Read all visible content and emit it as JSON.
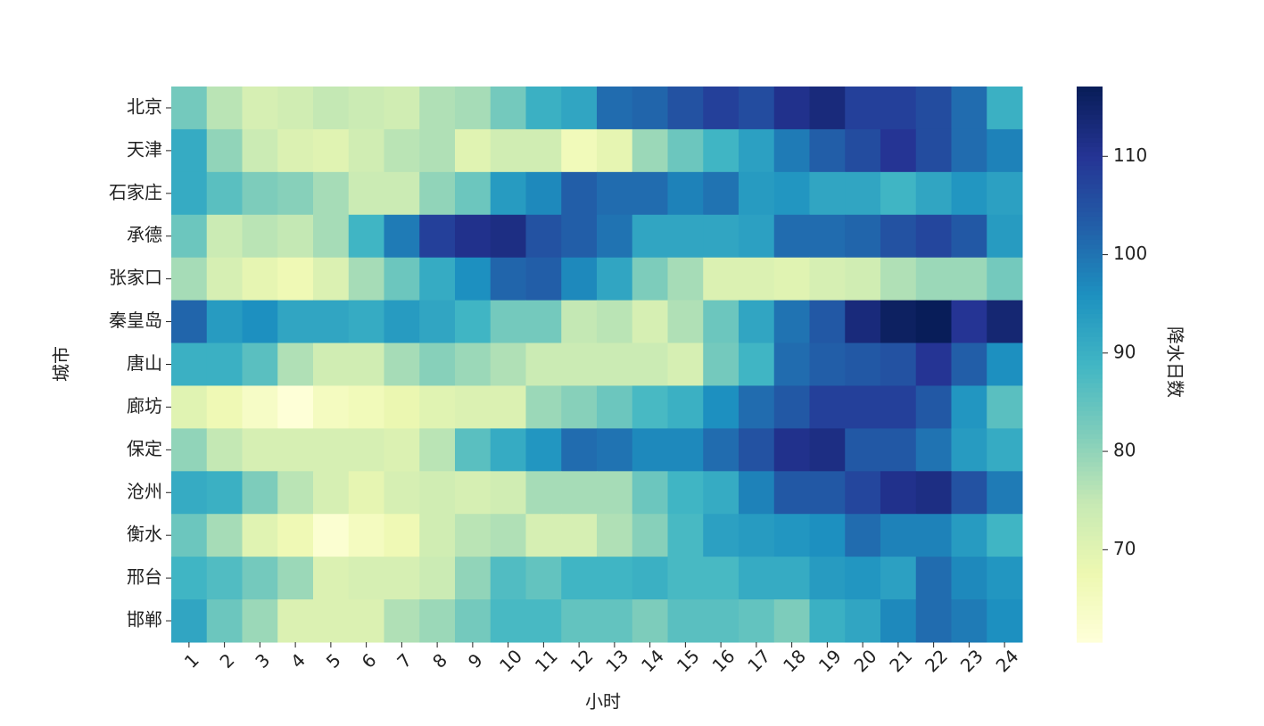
{
  "chart_data": {
    "type": "heatmap",
    "x_label": "小时",
    "y_label": "城市",
    "colorbar_label": "降水日数",
    "x": [
      1,
      2,
      3,
      4,
      5,
      6,
      7,
      8,
      9,
      10,
      11,
      12,
      13,
      14,
      15,
      16,
      17,
      18,
      19,
      20,
      21,
      22,
      23,
      24
    ],
    "y": [
      "北京",
      "天津",
      "石家庄",
      "承德",
      "张家口",
      "秦皇岛",
      "唐山",
      "廊坊",
      "保定",
      "沧州",
      "衡水",
      "邢台",
      "邯郸"
    ],
    "values": [
      [
        83,
        76,
        72,
        73,
        75,
        74,
        73,
        77,
        78,
        83,
        90,
        92,
        101,
        102,
        105,
        108,
        106,
        111,
        113,
        108,
        108,
        106,
        101,
        90
      ],
      [
        91,
        80,
        74,
        71,
        70,
        73,
        76,
        77,
        70,
        73,
        73,
        66,
        69,
        79,
        84,
        89,
        93,
        99,
        103,
        106,
        110,
        106,
        101,
        98
      ],
      [
        91,
        86,
        82,
        81,
        78,
        74,
        74,
        80,
        84,
        94,
        97,
        103,
        101,
        101,
        98,
        100,
        94,
        95,
        92,
        92,
        89,
        92,
        95,
        93
      ],
      [
        84,
        74,
        76,
        75,
        78,
        89,
        99,
        108,
        111,
        112,
        105,
        103,
        100,
        92,
        92,
        92,
        93,
        101,
        101,
        102,
        105,
        107,
        104,
        94
      ],
      [
        78,
        72,
        69,
        67,
        71,
        78,
        84,
        91,
        96,
        102,
        103,
        97,
        92,
        82,
        78,
        71,
        71,
        70,
        72,
        73,
        77,
        79,
        79,
        83
      ],
      [
        102,
        94,
        96,
        92,
        92,
        91,
        94,
        92,
        89,
        83,
        83,
        75,
        76,
        72,
        77,
        84,
        92,
        100,
        104,
        113,
        116,
        117,
        110,
        114
      ],
      [
        90,
        90,
        86,
        77,
        73,
        73,
        78,
        81,
        79,
        77,
        74,
        74,
        74,
        74,
        72,
        83,
        89,
        101,
        103,
        104,
        105,
        110,
        103,
        96
      ],
      [
        70,
        67,
        64,
        61,
        65,
        66,
        68,
        70,
        71,
        71,
        79,
        81,
        84,
        88,
        90,
        96,
        101,
        104,
        108,
        108,
        108,
        104,
        95,
        86
      ],
      [
        80,
        75,
        72,
        72,
        72,
        72,
        71,
        76,
        86,
        91,
        95,
        101,
        100,
        97,
        97,
        101,
        105,
        111,
        112,
        104,
        104,
        100,
        94,
        91
      ],
      [
        91,
        90,
        82,
        76,
        72,
        69,
        72,
        73,
        72,
        73,
        78,
        78,
        78,
        84,
        89,
        91,
        98,
        104,
        104,
        107,
        111,
        112,
        105,
        99
      ],
      [
        84,
        78,
        70,
        67,
        62,
        65,
        67,
        73,
        76,
        77,
        72,
        72,
        77,
        81,
        88,
        93,
        94,
        95,
        96,
        101,
        98,
        98,
        94,
        89
      ],
      [
        89,
        87,
        83,
        79,
        71,
        72,
        72,
        74,
        80,
        87,
        85,
        89,
        89,
        90,
        88,
        88,
        91,
        91,
        94,
        95,
        93,
        101,
        97,
        95
      ],
      [
        92,
        84,
        79,
        71,
        71,
        71,
        77,
        79,
        83,
        88,
        88,
        85,
        85,
        82,
        86,
        86,
        85,
        82,
        90,
        92,
        97,
        101,
        99,
        96
      ]
    ],
    "colormap": "YlGnBu",
    "clim": [
      60.6,
      117.1
    ],
    "cticks": [
      70,
      80,
      90,
      100,
      110
    ]
  }
}
